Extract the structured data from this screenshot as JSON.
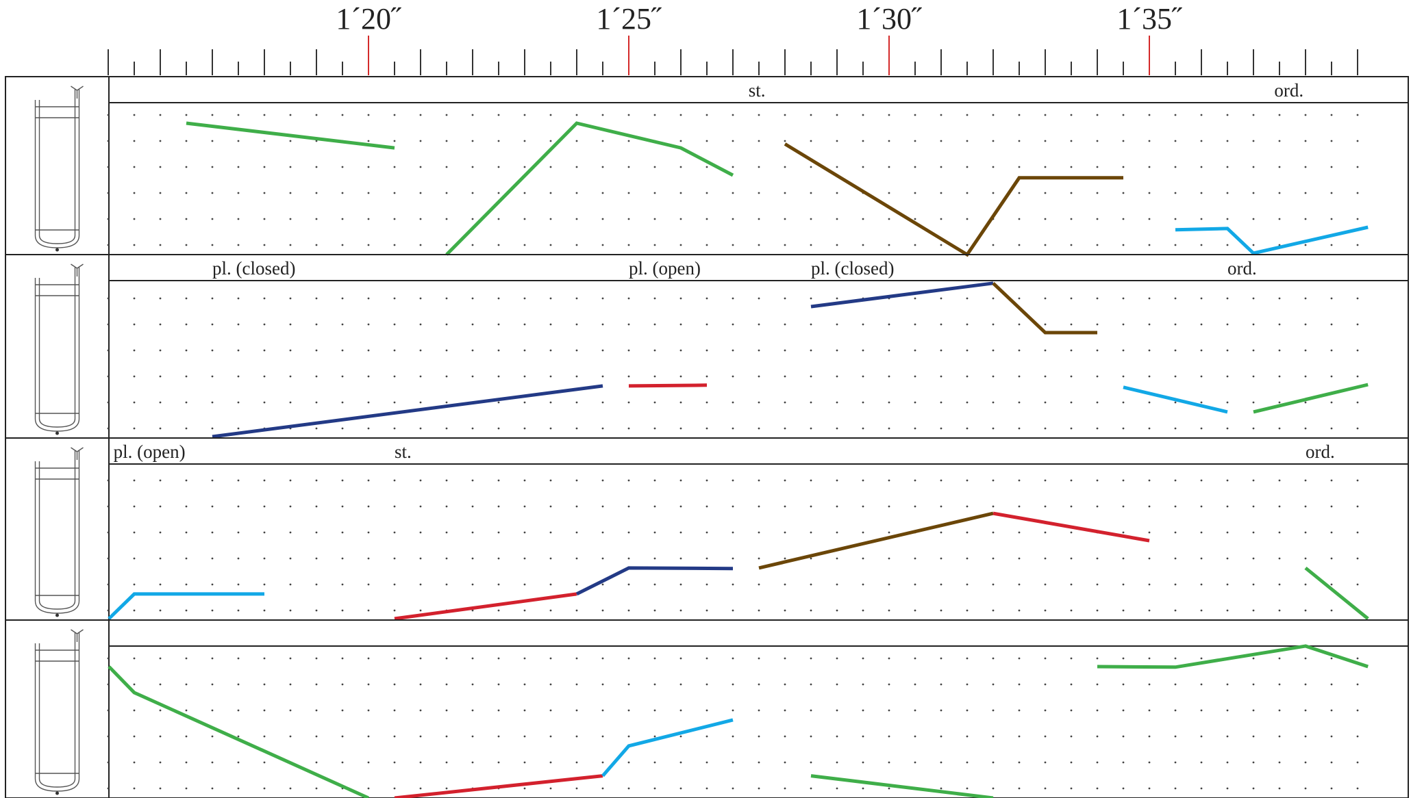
{
  "timeline": {
    "start_seconds": 75,
    "end_seconds": 99.25,
    "tick_step_seconds": 0.5,
    "markers": [
      {
        "seconds": 80,
        "label": "1´20˝"
      },
      {
        "seconds": 85,
        "label": "1´25˝"
      },
      {
        "seconds": 90,
        "label": "1´30˝"
      },
      {
        "seconds": 95,
        "label": "1´35˝"
      }
    ],
    "marker_color": "#d42a2a"
  },
  "colors": {
    "green": "#3fae49",
    "brown": "#6b4608",
    "cyan": "#12a8e6",
    "navy": "#233a86",
    "red": "#d3212d",
    "staff_line": "#222222",
    "grid_dot": "#444444"
  },
  "staves": [
    {
      "instrument_icon": "trombone-icon",
      "techniques": [
        {
          "text": "st.",
          "t": 87.3
        },
        {
          "text": "ord.",
          "t": 97.4
        }
      ],
      "lines": [
        {
          "color": "green",
          "points": [
            [
              76.5,
              5
            ],
            [
              80.5,
              4.05
            ]
          ]
        },
        {
          "color": "green",
          "points": [
            [
              81.5,
              -0.1
            ],
            [
              84,
              5
            ],
            [
              86,
              4.05
            ],
            [
              87,
              3
            ]
          ]
        },
        {
          "color": "brown",
          "points": [
            [
              88,
              4.2
            ],
            [
              91.5,
              -0.1
            ],
            [
              92.5,
              2.9
            ],
            [
              94.5,
              2.9
            ]
          ]
        },
        {
          "color": "cyan",
          "points": [
            [
              95.5,
              0.9
            ],
            [
              96.5,
              0.95
            ],
            [
              97,
              0
            ],
            [
              99.2,
              1
            ]
          ]
        }
      ]
    },
    {
      "instrument_icon": "trombone-icon",
      "techniques": [
        {
          "text": "pl. (closed)",
          "t": 77
        },
        {
          "text": "pl. (open)",
          "t": 85
        },
        {
          "text": "pl. (closed)",
          "t": 88.5
        },
        {
          "text": "ord.",
          "t": 96.5
        }
      ],
      "lines": [
        {
          "color": "navy",
          "points": [
            [
              77,
              0
            ],
            [
              84.5,
              1.95
            ]
          ]
        },
        {
          "color": "red",
          "points": [
            [
              85,
              1.95
            ],
            [
              86.5,
              1.98
            ]
          ]
        },
        {
          "color": "navy",
          "points": [
            [
              88.5,
              5
            ],
            [
              92,
              5.9
            ]
          ]
        },
        {
          "color": "brown",
          "points": [
            [
              92,
              5.9
            ],
            [
              93,
              4
            ],
            [
              94,
              4
            ]
          ]
        },
        {
          "color": "cyan",
          "points": [
            [
              94.5,
              1.9
            ],
            [
              96.5,
              0.95
            ]
          ]
        },
        {
          "color": "green",
          "points": [
            [
              97,
              0.95
            ],
            [
              99.2,
              2
            ]
          ]
        }
      ]
    },
    {
      "instrument_icon": "trombone-icon",
      "techniques": [
        {
          "text": "pl. (open)",
          "t": 75.1
        },
        {
          "text": "st.",
          "t": 80.5
        },
        {
          "text": "ord.",
          "t": 98
        }
      ],
      "lines": [
        {
          "color": "cyan",
          "points": [
            [
              75,
              0
            ],
            [
              75.5,
              0.95
            ],
            [
              78,
              0.95
            ]
          ]
        },
        {
          "color": "red",
          "points": [
            [
              80.5,
              0
            ],
            [
              84,
              0.95
            ]
          ]
        },
        {
          "color": "navy",
          "points": [
            [
              84,
              0.95
            ],
            [
              85,
              1.95
            ],
            [
              87,
              1.93
            ]
          ]
        },
        {
          "color": "brown",
          "points": [
            [
              87.5,
              1.95
            ],
            [
              92,
              4.05
            ]
          ]
        },
        {
          "color": "red",
          "points": [
            [
              92,
              4.05
            ],
            [
              95,
              3
            ]
          ]
        },
        {
          "color": "green",
          "points": [
            [
              98,
              1.95
            ],
            [
              99.2,
              0
            ]
          ]
        }
      ]
    },
    {
      "instrument_icon": "trombone-icon",
      "techniques": [],
      "lines": [
        {
          "color": "green",
          "points": [
            [
              75,
              5
            ],
            [
              75.5,
              4
            ],
            [
              80,
              -0.2
            ]
          ]
        },
        {
          "color": "red",
          "points": [
            [
              80.5,
              -0.15
            ],
            [
              84.5,
              0.8
            ]
          ]
        },
        {
          "color": "cyan",
          "points": [
            [
              84.5,
              0.8
            ],
            [
              85,
              1.95
            ],
            [
              87,
              2.95
            ]
          ]
        },
        {
          "color": "green",
          "points": [
            [
              88.5,
              0.8
            ],
            [
              92,
              -0.15
            ]
          ]
        },
        {
          "color": "green",
          "points": [
            [
              94,
              5
            ],
            [
              95.5,
              4.98
            ],
            [
              98,
              5.95
            ],
            [
              99.2,
              5
            ]
          ]
        }
      ]
    }
  ]
}
